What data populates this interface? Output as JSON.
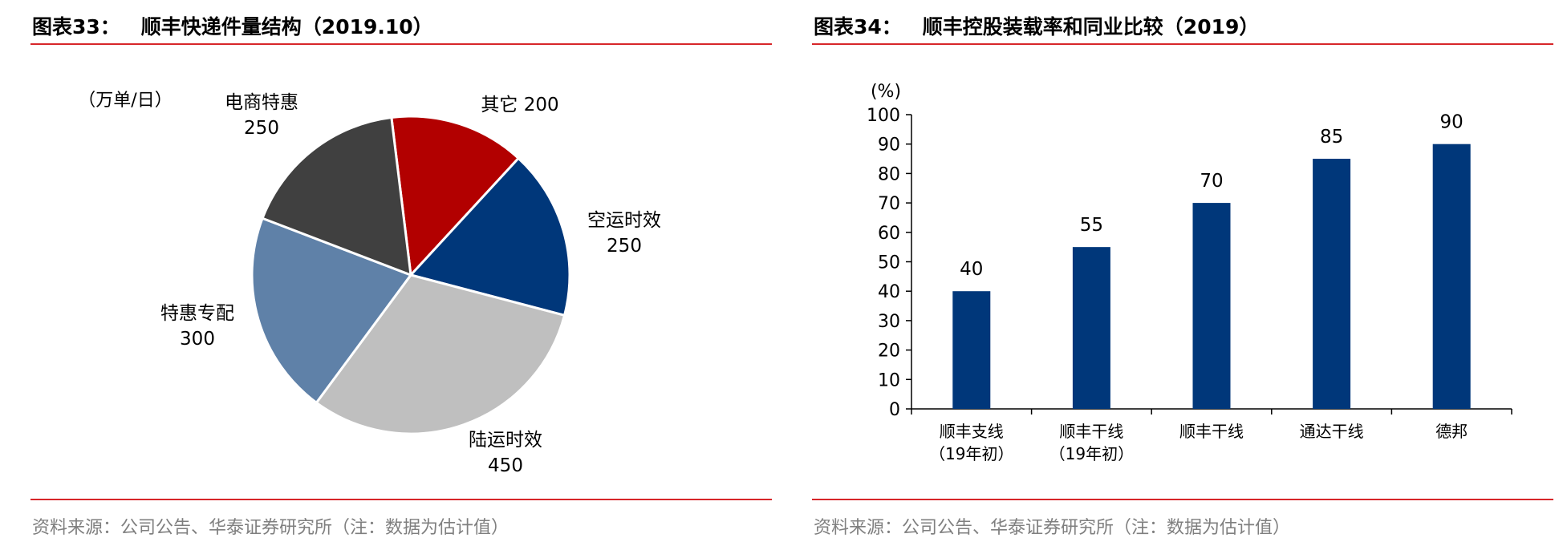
{
  "figures": [
    {
      "title_prefix": "图表33：",
      "title": "顺丰快递件量结构（2019.10）",
      "source": "资料来源：公司公告、华泰证券研究所（注：数据为估计值）"
    },
    {
      "title_prefix": "图表34：",
      "title": "顺丰控股装载率和同业比较（2019）",
      "source": "资料来源：公司公告、华泰证券研究所（注：数据为估计值）"
    }
  ],
  "chart_data": [
    {
      "type": "pie",
      "unit_label": "（万单/日）",
      "slices": [
        {
          "name": "其它",
          "value": 200,
          "color": "#b20000"
        },
        {
          "name": "空运时效",
          "value": 250,
          "color": "#00377a"
        },
        {
          "name": "陆运时效",
          "value": 450,
          "color": "#bfbfbf"
        },
        {
          "name": "特惠专配",
          "value": 300,
          "color": "#5f81a8"
        },
        {
          "name": "电商特惠",
          "value": 250,
          "color": "#404040"
        }
      ]
    },
    {
      "type": "bar",
      "ylabel": "(%)",
      "ylim": [
        0,
        100
      ],
      "yticks": [
        0,
        10,
        20,
        30,
        40,
        50,
        60,
        70,
        80,
        90,
        100
      ],
      "categories": [
        [
          "顺丰支线",
          "（19年初）"
        ],
        [
          "顺丰干线",
          "（19年初）"
        ],
        [
          "顺丰干线"
        ],
        [
          "通达干线"
        ],
        [
          "德邦"
        ]
      ],
      "values": [
        40,
        55,
        70,
        85,
        90
      ],
      "bar_color": "#00377a",
      "data_labels": true
    }
  ]
}
